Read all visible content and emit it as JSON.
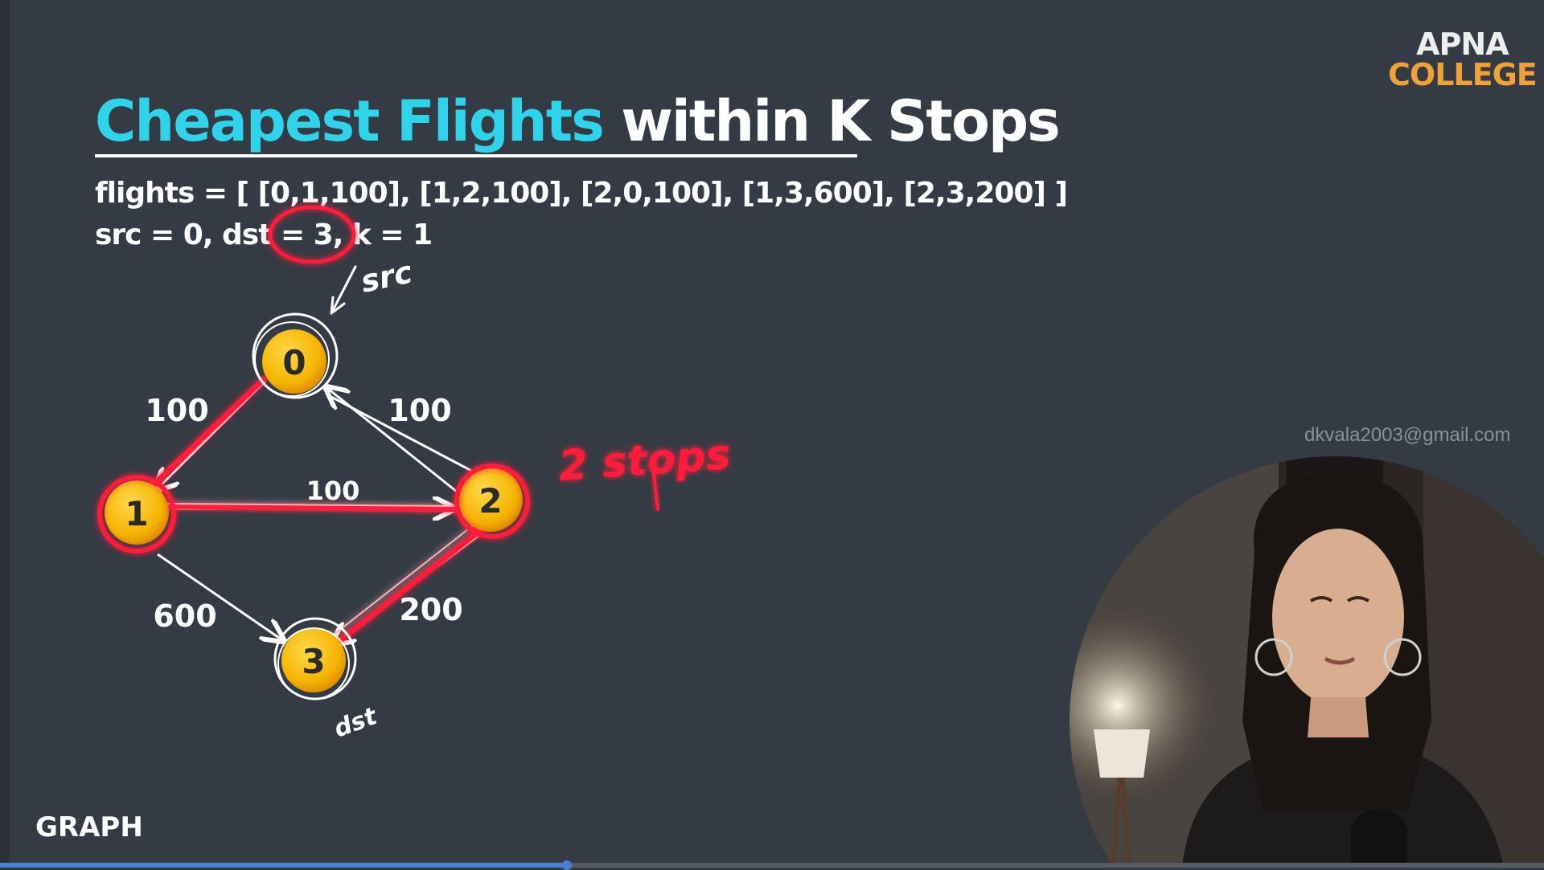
{
  "slide": {
    "title_highlight": "Cheapest Flights",
    "title_rest": " within K Stops",
    "flights_line": "flights = [ [0,1,100], [1,2,100], [2,0,100], [1,3,600], [2,3,200] ]",
    "params_line": "src = 0, dst = 3, k = 1",
    "section_label": "GRAPH"
  },
  "logo": {
    "line1": "APNA",
    "line2": "COLLEGE"
  },
  "watermark": "dkvala2003@gmail.com",
  "graph": {
    "nodes": [
      "0",
      "1",
      "2",
      "3"
    ],
    "edge_weights": {
      "e01": "100",
      "e12": "100",
      "e20": "100",
      "e13": "600",
      "e23": "200"
    },
    "annotations": {
      "src": "src",
      "dst": "dst",
      "stops": "2 stops"
    }
  },
  "video": {
    "progress": 0.367
  },
  "colors": {
    "background": "#353b44",
    "title_accent": "#2fd3ea",
    "node_fill": "#f5b400",
    "highlight": "#ff1f3a",
    "logo_accent": "#f0a23a"
  }
}
